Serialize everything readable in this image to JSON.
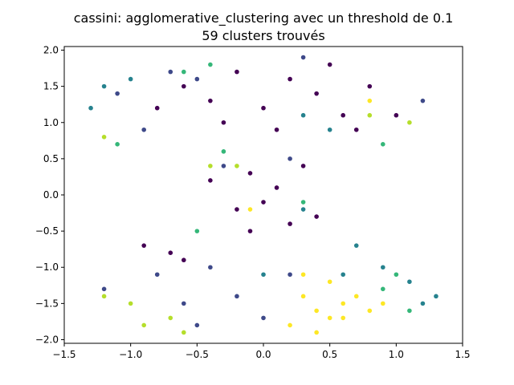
{
  "chart_data": {
    "type": "scatter",
    "title": "cassini: agglomerative_clustering avec un threshold de 0.1",
    "subtitle": "59 clusters trouvés",
    "xlabel": "",
    "ylabel": "",
    "xlim": [
      -1.5,
      1.5
    ],
    "ylim": [
      -2.05,
      2.05
    ],
    "x_ticks": [
      "−1.5",
      "−1.0",
      "−0.5",
      "0.0",
      "0.5",
      "1.0",
      "1.5"
    ],
    "x_tick_values": [
      -1.5,
      -1.0,
      -0.5,
      0.0,
      0.5,
      1.0,
      1.5
    ],
    "y_ticks": [
      "−2.0",
      "−1.5",
      "−1.0",
      "−0.5",
      "0.0",
      "0.5",
      "1.0",
      "1.5",
      "2.0"
    ],
    "y_tick_values": [
      -2.0,
      -1.5,
      -1.0,
      -0.5,
      0.0,
      0.5,
      1.0,
      1.5,
      2.0
    ],
    "grid": false,
    "colormap": "viridis",
    "palette": [
      "#440154",
      "#482878",
      "#3e4989",
      "#31688e",
      "#26828e",
      "#1f9e89",
      "#35b779",
      "#6ece58",
      "#b5de2b",
      "#fde725"
    ],
    "series": [
      {
        "color": "#440154",
        "points": [
          [
            -0.8,
            1.2
          ],
          [
            -0.6,
            1.5
          ],
          [
            -0.4,
            1.3
          ],
          [
            -0.2,
            1.7
          ],
          [
            0.0,
            1.2
          ],
          [
            0.2,
            1.6
          ],
          [
            0.4,
            1.4
          ],
          [
            0.6,
            1.1
          ],
          [
            0.8,
            1.5
          ],
          [
            -0.3,
            1.0
          ],
          [
            0.1,
            0.9
          ],
          [
            0.5,
            1.8
          ],
          [
            -0.1,
            0.3
          ],
          [
            0.1,
            0.1
          ],
          [
            -0.2,
            -0.2
          ],
          [
            0.2,
            -0.4
          ],
          [
            -0.4,
            0.2
          ],
          [
            0.3,
            0.4
          ],
          [
            0.0,
            -0.1
          ],
          [
            -0.9,
            -0.7
          ],
          [
            -0.7,
            -0.8
          ],
          [
            -0.6,
            -0.9
          ],
          [
            0.7,
            0.9
          ],
          [
            1.0,
            1.1
          ],
          [
            0.4,
            -0.3
          ],
          [
            -0.1,
            -0.5
          ]
        ]
      },
      {
        "color": "#3e4989",
        "points": [
          [
            -1.1,
            1.4
          ],
          [
            -0.9,
            0.9
          ],
          [
            -0.7,
            1.7
          ],
          [
            0.3,
            1.9
          ],
          [
            -0.3,
            0.4
          ],
          [
            0.2,
            0.5
          ],
          [
            -0.4,
            -1.0
          ],
          [
            -0.2,
            -1.4
          ],
          [
            0.0,
            -1.7
          ],
          [
            -0.6,
            -1.5
          ],
          [
            -0.8,
            -1.1
          ],
          [
            0.2,
            -1.1
          ],
          [
            -1.2,
            -1.3
          ],
          [
            -0.5,
            -1.8
          ],
          [
            1.2,
            1.3
          ],
          [
            -0.5,
            1.6
          ]
        ]
      },
      {
        "color": "#26828e",
        "points": [
          [
            -1.3,
            1.2
          ],
          [
            -1.2,
            1.5
          ],
          [
            -1.0,
            1.6
          ],
          [
            0.3,
            1.1
          ],
          [
            0.5,
            0.9
          ],
          [
            0.7,
            -0.7
          ],
          [
            0.9,
            -1.0
          ],
          [
            1.1,
            -1.2
          ],
          [
            1.3,
            -1.4
          ],
          [
            0.6,
            -1.1
          ],
          [
            0.0,
            -1.1
          ],
          [
            0.3,
            -0.2
          ],
          [
            1.2,
            -1.5
          ]
        ]
      },
      {
        "color": "#35b779",
        "points": [
          [
            -0.6,
            1.7
          ],
          [
            -0.4,
            1.8
          ],
          [
            -1.1,
            0.7
          ],
          [
            -0.3,
            0.6
          ],
          [
            0.3,
            -0.1
          ],
          [
            0.9,
            -1.3
          ],
          [
            1.0,
            -1.1
          ],
          [
            1.1,
            -1.6
          ],
          [
            -0.5,
            -0.5
          ],
          [
            0.9,
            0.7
          ]
        ]
      },
      {
        "color": "#b5de2b",
        "points": [
          [
            -1.2,
            0.8
          ],
          [
            -1.2,
            -1.4
          ],
          [
            -1.0,
            -1.5
          ],
          [
            -0.9,
            -1.8
          ],
          [
            -0.7,
            -1.7
          ],
          [
            -0.6,
            -1.9
          ],
          [
            -0.4,
            0.4
          ],
          [
            -0.2,
            0.4
          ],
          [
            0.8,
            1.1
          ],
          [
            1.1,
            1.0
          ]
        ]
      },
      {
        "color": "#fde725",
        "points": [
          [
            0.2,
            -1.8
          ],
          [
            0.3,
            -1.4
          ],
          [
            0.4,
            -1.6
          ],
          [
            0.5,
            -1.2
          ],
          [
            0.6,
            -1.7
          ],
          [
            0.7,
            -1.4
          ],
          [
            0.8,
            -1.6
          ],
          [
            0.4,
            -1.9
          ],
          [
            0.3,
            -1.1
          ],
          [
            0.6,
            -1.5
          ],
          [
            0.8,
            1.3
          ],
          [
            0.9,
            -1.5
          ],
          [
            0.5,
            -1.7
          ],
          [
            -0.1,
            -0.2
          ]
        ]
      }
    ]
  }
}
